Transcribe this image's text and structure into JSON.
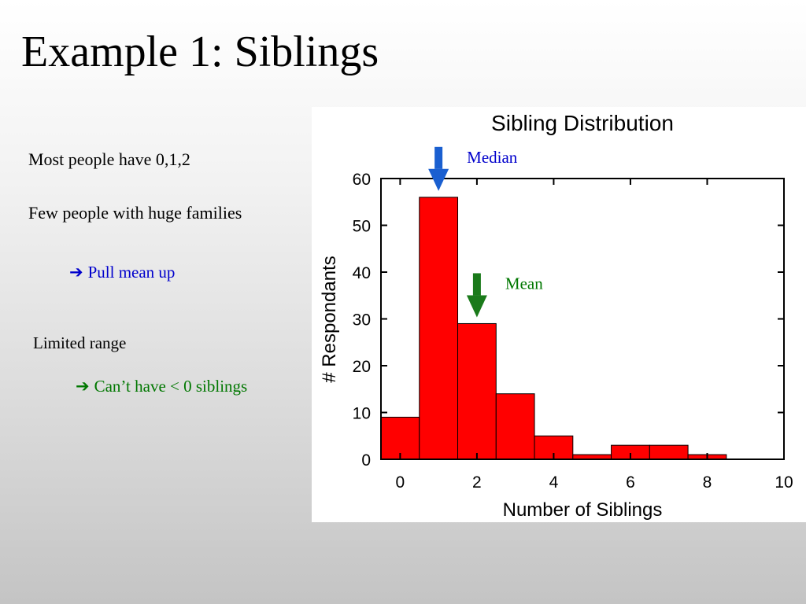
{
  "slide": {
    "title": "Example 1: Siblings",
    "bullets": {
      "most_people": "Most people have 0,1,2",
      "few_people": "Few people with huge families",
      "pull_mean": "Pull mean up",
      "limited_range": "Limited range",
      "cant_have": "Can’t have < 0 siblings"
    },
    "colors": {
      "blue_text": "#0000cc",
      "green_text": "#007700"
    }
  },
  "chart_data": {
    "type": "bar",
    "title": "Sibling Distribution",
    "xlabel": "Number of Siblings",
    "ylabel": "# Respondants",
    "x_bins": [
      0,
      1,
      2,
      3,
      4,
      5,
      6,
      7,
      8
    ],
    "values": [
      9,
      56,
      29,
      14,
      5,
      1,
      3,
      3,
      1
    ],
    "xlim": [
      -0.5,
      10
    ],
    "ylim": [
      0,
      60
    ],
    "xticks": [
      0,
      2,
      4,
      6,
      8,
      10
    ],
    "yticks": [
      0,
      10,
      20,
      30,
      40,
      50,
      60
    ],
    "bar_color": "#ff0000",
    "grid": false,
    "annotations": [
      {
        "label": "Median",
        "x": 1,
        "y": 56,
        "color": "#0000cc",
        "arrow_color": "#1a5fd0"
      },
      {
        "label": "Mean",
        "x": 2,
        "y": 29,
        "color": "#007700",
        "arrow_color": "#1a7a1a"
      }
    ]
  }
}
